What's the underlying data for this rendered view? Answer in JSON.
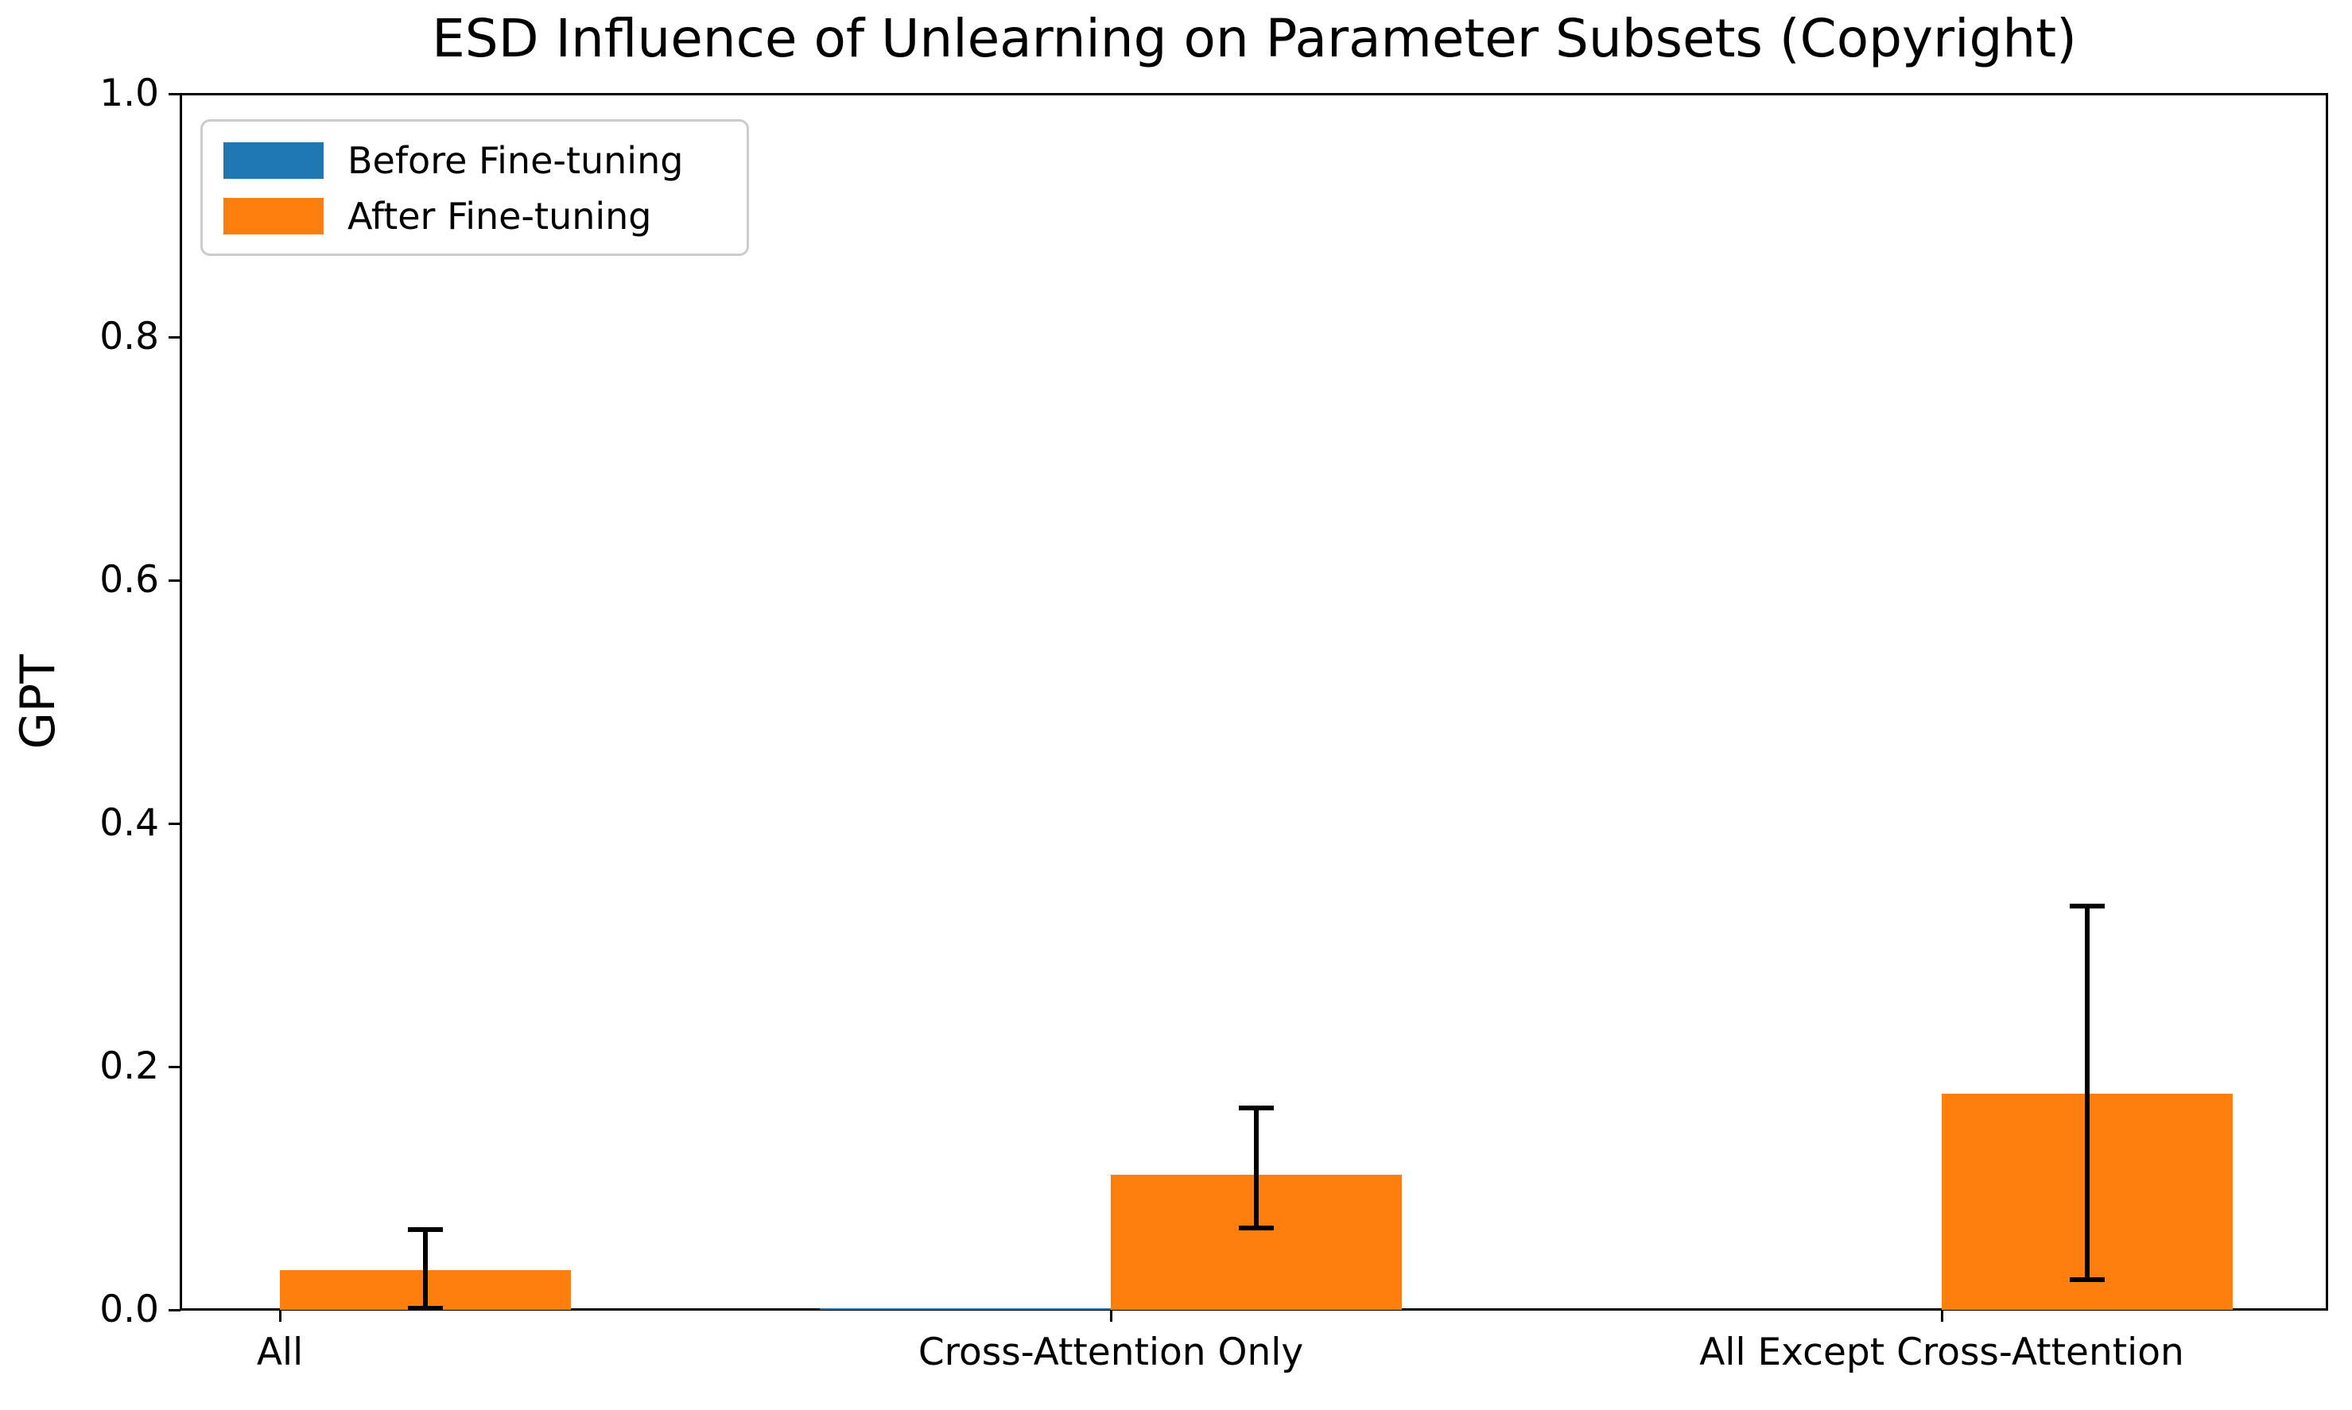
{
  "figure": {
    "background": "#ffffff",
    "text_color": "#000000",
    "axis_color": "#000000"
  },
  "chart_data": {
    "type": "bar",
    "title": "ESD Influence of Unlearning on Parameter Subsets (Copyright)",
    "ylabel": "GPT",
    "xlabel": "",
    "ylim": [
      0.0,
      1.0
    ],
    "yticks": [
      "0.0",
      "0.2",
      "0.4",
      "0.6",
      "0.8",
      "1.0"
    ],
    "grid": false,
    "legend_position": "upper left",
    "categories": [
      "All",
      "Cross-Attention Only",
      "All Except Cross-Attention"
    ],
    "series": [
      {
        "name": "Before Fine-tuning",
        "color": "#1f77b4",
        "values": [
          0.0,
          0.0015,
          0.0
        ]
      },
      {
        "name": "After Fine-tuning",
        "color": "#ff7f0e",
        "values": [
          0.033,
          0.111,
          0.178
        ],
        "err_low": [
          0.001,
          0.067,
          0.025
        ],
        "err_high": [
          0.066,
          0.166,
          0.332
        ]
      }
    ],
    "error_bar_color": "#000000",
    "legend_border_color": "#cccccc"
  }
}
